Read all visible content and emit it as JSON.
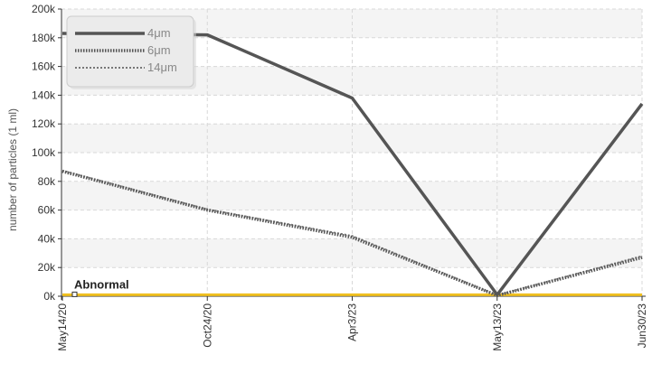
{
  "chart_data": {
    "type": "line",
    "ylabel": "number of particles (1 ml)",
    "xlabel": "",
    "title": "",
    "categories": [
      "May14/20",
      "Oct24/20",
      "Apr3/23",
      "May13/23",
      "Jun30/23"
    ],
    "ylim": [
      0,
      200000
    ],
    "ytick_values": [
      0,
      20000,
      40000,
      60000,
      80000,
      100000,
      120000,
      140000,
      160000,
      180000,
      200000
    ],
    "ytick_labels": [
      "0k",
      "20k",
      "40k",
      "60k",
      "80k",
      "100k",
      "120k",
      "140k",
      "160k",
      "180k",
      "200k"
    ],
    "grid": true,
    "legend_position": "top-left",
    "series": [
      {
        "name": "4μm",
        "values": [
          183000,
          182000,
          138000,
          1000,
          134000
        ],
        "color": "#555555",
        "style": "solid"
      },
      {
        "name": "6μm",
        "values": [
          87000,
          60000,
          41000,
          500,
          27000
        ],
        "color": "#555555",
        "style": "dotted"
      },
      {
        "name": "14μm",
        "values": [
          87500,
          60500,
          42000,
          700,
          28000
        ],
        "color": "#777777",
        "style": "dashed"
      }
    ],
    "annotations": [
      {
        "label": "Abnormal",
        "value": 1000,
        "color": "#f0c020"
      }
    ]
  }
}
